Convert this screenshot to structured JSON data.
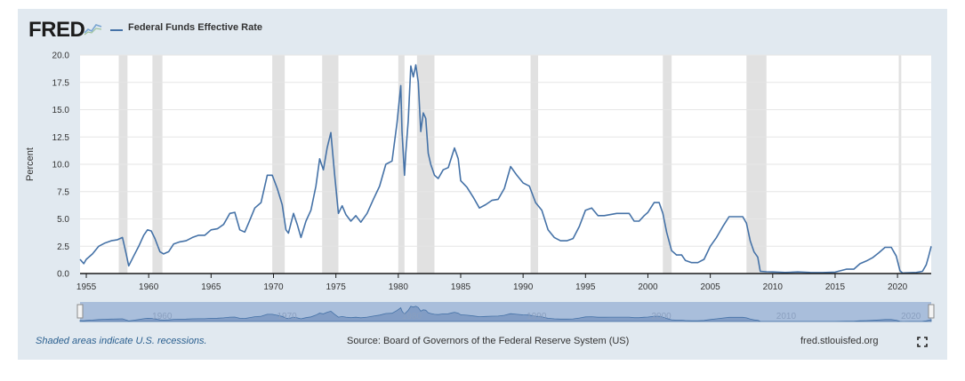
{
  "header": {
    "logo_text": "FRED",
    "series_label": "Federal Funds Effective Rate",
    "logo_icon": "fred-graph-icon"
  },
  "footer": {
    "recession_note": "Shaded areas indicate U.S. recessions.",
    "source": "Source: Board of Governors of the Federal Reserve System (US)",
    "site": "fred.stlouisfed.org",
    "fullscreen_icon": "fullscreen-icon"
  },
  "colors": {
    "line": "#4572a7",
    "recession": "#e1e1e1",
    "panel": "#e1e9f0"
  },
  "chart_data": {
    "type": "line",
    "title": "",
    "ylabel": "Percent",
    "xlabel": "",
    "xlim": [
      1954.5,
      2022.7
    ],
    "ylim": [
      0,
      20
    ],
    "y_ticks": [
      0.0,
      2.5,
      5.0,
      7.5,
      10.0,
      12.5,
      15.0,
      17.5,
      20.0
    ],
    "y_tick_labels": [
      "0.0",
      "2.5",
      "5.0",
      "7.5",
      "10.0",
      "12.5",
      "15.0",
      "17.5",
      "20.0"
    ],
    "x_ticks": [
      1955,
      1960,
      1965,
      1970,
      1975,
      1980,
      1985,
      1990,
      1995,
      2000,
      2005,
      2010,
      2015,
      2020
    ],
    "x_tick_labels": [
      "1955",
      "1960",
      "1965",
      "1970",
      "1975",
      "1980",
      "1985",
      "1990",
      "1995",
      "2000",
      "2005",
      "2010",
      "2015",
      "2020"
    ],
    "grid": "horizontal",
    "legend": "top-left",
    "recessions": [
      [
        1957.6,
        1958.3
      ],
      [
        1960.3,
        1961.1
      ],
      [
        1969.9,
        1970.9
      ],
      [
        1973.9,
        1975.2
      ],
      [
        1980.0,
        1980.5
      ],
      [
        1981.5,
        1982.9
      ],
      [
        1990.6,
        1991.2
      ],
      [
        2001.2,
        2001.9
      ],
      [
        2007.9,
        2009.5
      ],
      [
        2020.1,
        2020.3
      ]
    ],
    "navigator_labels": [
      "1960",
      "1970",
      "1980",
      "1990",
      "2000",
      "2010",
      "2020"
    ],
    "navigator_ticks": [
      1960,
      1970,
      1980,
      1990,
      2000,
      2010,
      2020
    ],
    "series": [
      {
        "name": "Federal Funds Effective Rate",
        "x": [
          1954.5,
          1954.8,
          1955.0,
          1955.5,
          1956.0,
          1956.5,
          1957.0,
          1957.5,
          1957.9,
          1958.2,
          1958.4,
          1958.8,
          1959.2,
          1959.6,
          1959.9,
          1960.2,
          1960.5,
          1960.9,
          1961.2,
          1961.6,
          1962.0,
          1962.5,
          1963.0,
          1963.5,
          1964.0,
          1964.5,
          1965.0,
          1965.5,
          1966.0,
          1966.5,
          1966.9,
          1967.3,
          1967.7,
          1968.0,
          1968.5,
          1969.0,
          1969.5,
          1969.9,
          1970.3,
          1970.7,
          1971.0,
          1971.2,
          1971.6,
          1971.9,
          1972.2,
          1972.6,
          1973.0,
          1973.4,
          1973.7,
          1974.0,
          1974.3,
          1974.6,
          1974.9,
          1975.2,
          1975.5,
          1975.8,
          1976.2,
          1976.6,
          1977.0,
          1977.5,
          1978.0,
          1978.5,
          1979.0,
          1979.5,
          1979.9,
          1980.2,
          1980.3,
          1980.5,
          1980.6,
          1980.8,
          1981.0,
          1981.2,
          1981.4,
          1981.6,
          1981.8,
          1982.0,
          1982.2,
          1982.4,
          1982.6,
          1982.9,
          1983.2,
          1983.6,
          1984.0,
          1984.5,
          1984.8,
          1985.0,
          1985.5,
          1986.0,
          1986.5,
          1987.0,
          1987.5,
          1988.0,
          1988.5,
          1989.0,
          1989.5,
          1990.0,
          1990.5,
          1991.0,
          1991.5,
          1992.0,
          1992.5,
          1993.0,
          1993.5,
          1994.0,
          1994.5,
          1995.0,
          1995.5,
          1996.0,
          1996.5,
          1997.0,
          1997.5,
          1998.0,
          1998.5,
          1998.9,
          1999.3,
          1999.7,
          2000.0,
          2000.5,
          2000.9,
          2001.2,
          2001.5,
          2001.9,
          2002.3,
          2002.7,
          2003.0,
          2003.5,
          2004.0,
          2004.5,
          2005.0,
          2005.5,
          2006.0,
          2006.5,
          2007.0,
          2007.6,
          2007.9,
          2008.2,
          2008.5,
          2008.8,
          2009.0,
          2009.5,
          2010.0,
          2011.0,
          2012.0,
          2013.0,
          2014.0,
          2015.0,
          2015.9,
          2016.5,
          2017.0,
          2017.5,
          2018.0,
          2018.5,
          2019.0,
          2019.5,
          2019.9,
          2020.2,
          2020.4,
          2021.0,
          2021.5,
          2022.0,
          2022.3,
          2022.5,
          2022.7
        ],
        "y": [
          1.3,
          0.9,
          1.3,
          1.8,
          2.5,
          2.8,
          3.0,
          3.1,
          3.3,
          1.8,
          0.7,
          1.6,
          2.5,
          3.5,
          4.0,
          3.9,
          3.2,
          2.0,
          1.8,
          2.0,
          2.7,
          2.9,
          3.0,
          3.3,
          3.5,
          3.5,
          4.0,
          4.1,
          4.5,
          5.5,
          5.6,
          4.0,
          3.8,
          4.6,
          6.0,
          6.5,
          9.0,
          9.0,
          7.8,
          6.3,
          4.0,
          3.7,
          5.5,
          4.5,
          3.3,
          4.8,
          5.8,
          8.0,
          10.5,
          9.5,
          11.5,
          12.9,
          9.0,
          5.5,
          6.2,
          5.4,
          4.8,
          5.3,
          4.7,
          5.5,
          6.8,
          8.0,
          10.0,
          10.3,
          13.8,
          17.2,
          13.0,
          9.0,
          11.0,
          14.0,
          19.0,
          18.0,
          19.1,
          17.5,
          13.0,
          14.7,
          14.2,
          11.0,
          10.0,
          9.0,
          8.7,
          9.5,
          9.7,
          11.5,
          10.5,
          8.5,
          7.9,
          7.0,
          6.0,
          6.3,
          6.7,
          6.8,
          7.8,
          9.8,
          9.0,
          8.3,
          8.0,
          6.5,
          5.8,
          4.0,
          3.3,
          3.0,
          3.0,
          3.2,
          4.3,
          5.8,
          6.0,
          5.3,
          5.3,
          5.4,
          5.5,
          5.5,
          5.5,
          4.8,
          4.8,
          5.3,
          5.6,
          6.5,
          6.5,
          5.5,
          3.8,
          2.1,
          1.7,
          1.7,
          1.2,
          1.0,
          1.0,
          1.3,
          2.5,
          3.3,
          4.3,
          5.2,
          5.2,
          5.2,
          4.6,
          3.0,
          2.0,
          1.5,
          0.2,
          0.16,
          0.15,
          0.1,
          0.15,
          0.1,
          0.09,
          0.13,
          0.4,
          0.4,
          0.9,
          1.15,
          1.45,
          1.9,
          2.4,
          2.4,
          1.6,
          0.25,
          0.05,
          0.08,
          0.1,
          0.2,
          0.8,
          1.6,
          2.5
        ]
      }
    ]
  }
}
